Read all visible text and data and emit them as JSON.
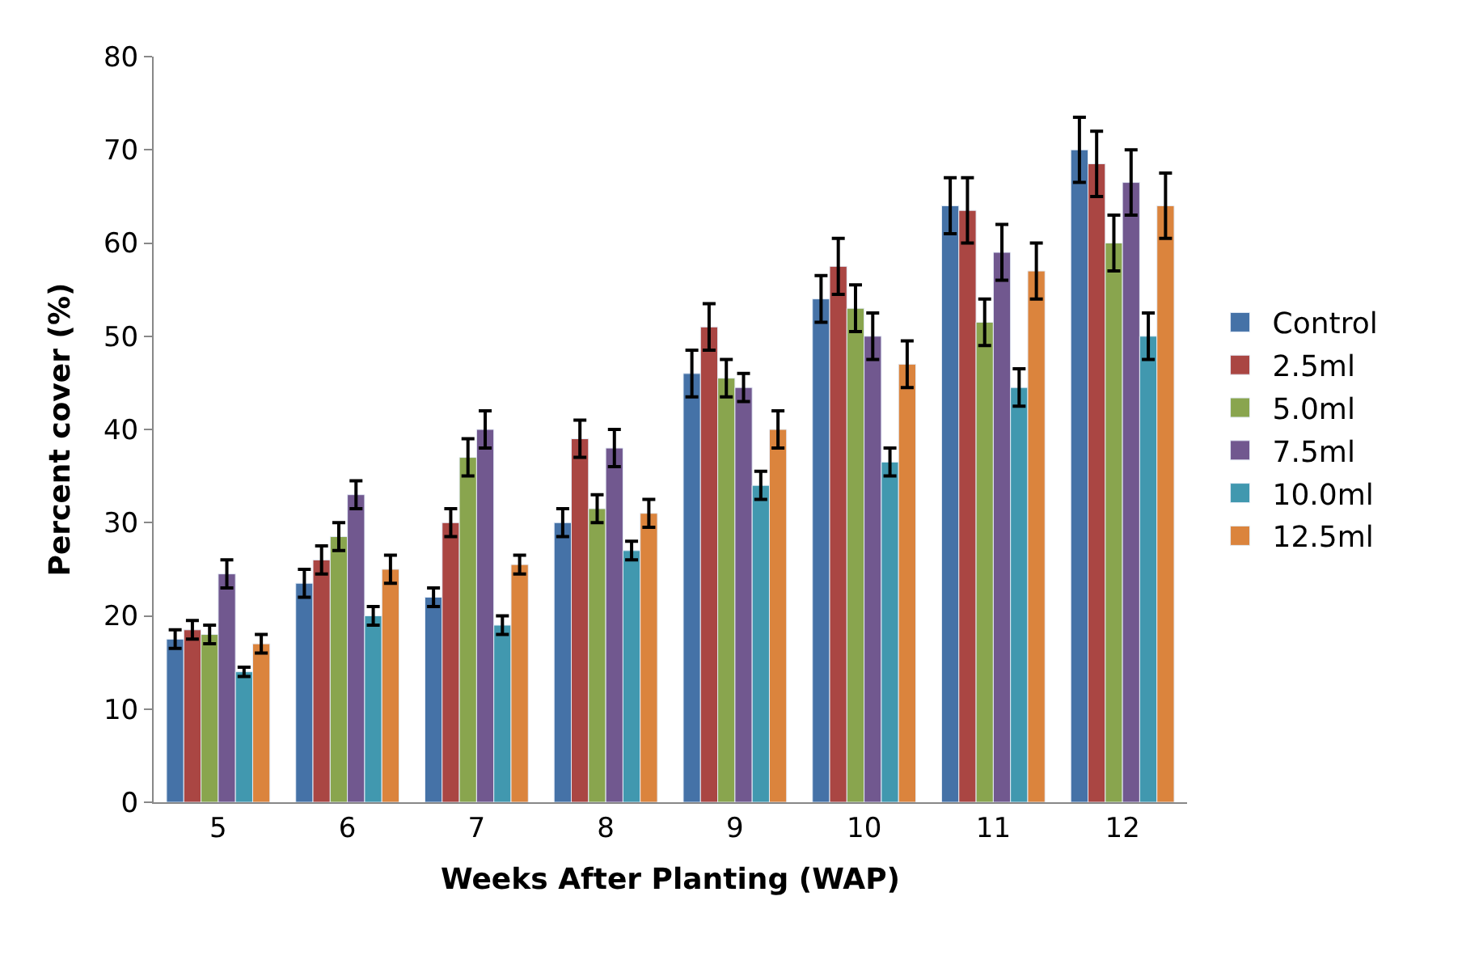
{
  "chart_data": {
    "type": "bar",
    "xlabel": "Weeks After Planting (WAP)",
    "ylabel": "Percent cover (%)",
    "categories": [
      "5",
      "6",
      "7",
      "8",
      "9",
      "10",
      "11",
      "12"
    ],
    "ylim": [
      0,
      80
    ],
    "yticks": [
      0,
      10,
      20,
      30,
      40,
      50,
      60,
      70,
      80
    ],
    "legend": "right",
    "series": [
      {
        "name": "Control",
        "color": "#4572a7",
        "values": [
          17.5,
          23.5,
          22,
          30,
          46,
          54,
          64,
          70
        ],
        "errors": [
          1,
          1.5,
          1,
          1.5,
          2.5,
          2.5,
          3,
          3.5
        ]
      },
      {
        "name": "2.5ml",
        "color": "#aa4643",
        "values": [
          18.5,
          26,
          30,
          39,
          51,
          57.5,
          63.5,
          68.5
        ],
        "errors": [
          1,
          1.5,
          1.5,
          2,
          2.5,
          3,
          3.5,
          3.5
        ]
      },
      {
        "name": "5.0ml",
        "color": "#89a54e",
        "values": [
          18,
          28.5,
          37,
          31.5,
          45.5,
          53,
          51.5,
          60
        ],
        "errors": [
          1,
          1.5,
          2,
          1.5,
          2,
          2.5,
          2.5,
          3
        ]
      },
      {
        "name": "7.5ml",
        "color": "#71588f",
        "values": [
          24.5,
          33,
          40,
          38,
          44.5,
          50,
          59,
          66.5
        ],
        "errors": [
          1.5,
          1.5,
          2,
          2,
          1.5,
          2.5,
          3,
          3.5
        ]
      },
      {
        "name": "10.0ml",
        "color": "#4198af",
        "values": [
          14,
          20,
          19,
          27,
          34,
          36.5,
          44.5,
          50
        ],
        "errors": [
          0.5,
          1,
          1,
          1,
          1.5,
          1.5,
          2,
          2.5
        ]
      },
      {
        "name": "12.5ml",
        "color": "#db843d",
        "values": [
          17,
          25,
          25.5,
          31,
          40,
          47,
          57,
          64
        ],
        "errors": [
          1,
          1.5,
          1,
          1.5,
          2,
          2.5,
          3,
          3.5
        ]
      }
    ]
  }
}
